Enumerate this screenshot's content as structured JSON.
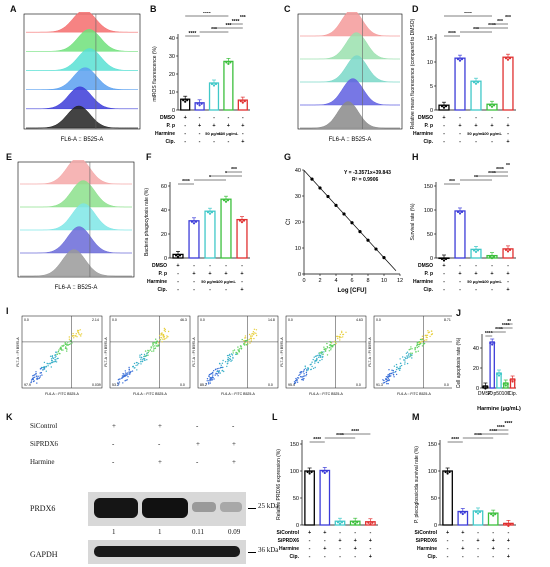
{
  "labels": {
    "A": "A",
    "B": "B",
    "C": "C",
    "D": "D",
    "E": "E",
    "F": "F",
    "G": "G",
    "H": "H",
    "I": "I",
    "J": "J",
    "K": "K",
    "L": "L",
    "M": "M"
  },
  "histograms": {
    "A": {
      "xlabel": "FL6-A :: B525-A",
      "colors": [
        "#f46d6d",
        "#6fe07a",
        "#58e0d4",
        "#5aa0f0",
        "#3c3cd8",
        "#222222"
      ]
    },
    "C": {
      "xlabel": "FL6-A :: B525-A",
      "colors": [
        "#f49a9a",
        "#9ae0ae",
        "#7ad8c8",
        "#5f5fe0",
        "#8a8a8a"
      ]
    },
    "E": {
      "xlabel": "FL6-A :: B525-A",
      "colors": [
        "#f4a8a8",
        "#8ce08c",
        "#7ee6e6",
        "#6a6ad8",
        "#9a9a9a"
      ]
    }
  },
  "treatment_table": {
    "rows": [
      {
        "label": "DMSO",
        "values": [
          "+",
          "-",
          "-",
          "-",
          "-"
        ]
      },
      {
        "label": "P. p",
        "values": [
          "-",
          "+",
          "+",
          "+",
          "+"
        ]
      },
      {
        "label": "Harmine",
        "values": [
          "-",
          "-",
          "50 μg/mL",
          "100 μg/mL",
          "-"
        ]
      },
      {
        "label": "Cip.",
        "values": [
          "-",
          "-",
          "-",
          "-",
          "+"
        ]
      }
    ]
  },
  "charts": {
    "B": {
      "type": "bar",
      "ylabel": "mtROS fluorescence (%)",
      "ylim": [
        0,
        40
      ],
      "ticks": [
        0,
        10,
        20,
        30,
        40
      ],
      "values": [
        6,
        4,
        15,
        27,
        5.5
      ],
      "colors": [
        "#000000",
        "#3c3cd8",
        "#40c8c8",
        "#3cbf3c",
        "#e03030"
      ],
      "sig": [
        "****",
        "***",
        "***",
        "****",
        "***",
        "****"
      ]
    },
    "D": {
      "type": "bar",
      "ylabel": "Relative mean fluorescence (compared to DMSO)",
      "ylim": [
        0,
        15
      ],
      "ticks": [
        0,
        5,
        10,
        15
      ],
      "values": [
        1,
        10.8,
        6,
        1.2,
        11
      ],
      "colors": [
        "#000000",
        "#3c3cd8",
        "#40c8c8",
        "#3cbf3c",
        "#e03030"
      ],
      "sig": [
        "****",
        "***",
        "****",
        "***",
        "***",
        "****"
      ]
    },
    "F": {
      "type": "bar",
      "ylabel": "Bacteria phagocytosis rate (%)",
      "ylim": [
        0,
        60
      ],
      "ticks": [
        0,
        20,
        40,
        60
      ],
      "values": [
        3,
        31,
        39,
        49,
        32
      ],
      "colors": [
        "#000000",
        "#3c3cd8",
        "#40c8c8",
        "#3cbf3c",
        "#e03030"
      ],
      "sig": [
        "****",
        "*",
        "*",
        "***"
      ]
    },
    "G": {
      "type": "line",
      "ylabel": "Ct",
      "xlabel": "Log [CFU]",
      "xlim": [
        0,
        12
      ],
      "ylim": [
        0,
        40
      ],
      "xticks": [
        0,
        2,
        4,
        6,
        8,
        10,
        12
      ],
      "yticks": [
        0,
        10,
        20,
        30,
        40
      ],
      "x": [
        1,
        2,
        3,
        4,
        5,
        6,
        7,
        8,
        9,
        10
      ],
      "y": [
        36.5,
        33.1,
        29.8,
        26.4,
        23.1,
        19.7,
        16.3,
        13,
        9.6,
        6.3
      ],
      "equation": "Y = -3.3571x+39.843",
      "r2": "R² = 0.9906"
    },
    "H": {
      "type": "bar",
      "ylabel": "Survival rate (%)",
      "ylim": [
        0,
        150
      ],
      "ticks": [
        0,
        50,
        100,
        150
      ],
      "values": [
        0,
        98,
        18,
        5,
        19
      ],
      "colors": [
        "#000000",
        "#3c3cd8",
        "#40c8c8",
        "#3cbf3c",
        "#e03030"
      ],
      "sig": [
        "***",
        "**",
        "****",
        "****",
        "**"
      ]
    },
    "J": {
      "type": "bar",
      "ylabel": "Cell apoptosis rate (%)",
      "xlabel": "Harmine (μg/mL)",
      "ylim": [
        0,
        50
      ],
      "ticks": [
        0,
        20,
        40
      ],
      "categories": [
        "DMSO",
        "P. p",
        "50",
        "100",
        "Cip."
      ],
      "values": [
        2,
        46,
        15,
        5,
        9
      ],
      "colors": [
        "#000000",
        "#3c3cd8",
        "#40c8c8",
        "#3cbf3c",
        "#e03030"
      ],
      "sig": [
        "****",
        "****",
        "****",
        "**"
      ]
    },
    "L": {
      "type": "bar",
      "ylabel": "Relative PRDX6 expression (%)",
      "ylim": [
        0,
        150
      ],
      "ticks": [
        0,
        50,
        100,
        150
      ],
      "values": [
        100,
        101,
        7,
        7,
        6
      ],
      "colors": [
        "#000000",
        "#3c3cd8",
        "#40c8c8",
        "#3cbf3c",
        "#e03030"
      ],
      "sig": [
        "****",
        "****",
        "****"
      ]
    },
    "M": {
      "type": "bar",
      "ylabel": "P. plecoglossicida survival rate (%)",
      "ylim": [
        0,
        150
      ],
      "ticks": [
        0,
        50,
        100,
        150
      ],
      "values": [
        100,
        25,
        26,
        22,
        3
      ],
      "colors": [
        "#000000",
        "#3c3cd8",
        "#40c8c8",
        "#3cbf3c",
        "#e03030"
      ],
      "sig": [
        "****",
        "****",
        "****",
        "****",
        "****"
      ]
    }
  },
  "si_table": {
    "rows": [
      {
        "label": "SiControl",
        "values": [
          "+",
          "+",
          "-",
          "-",
          "-"
        ]
      },
      {
        "label": "SiPRDX6",
        "values": [
          "-",
          "-",
          "+",
          "+",
          "+"
        ]
      },
      {
        "label": "Harmine",
        "values": [
          "-",
          "+",
          "-",
          "+",
          "-"
        ]
      },
      {
        "label": "Cip.",
        "values": [
          "-",
          "-",
          "-",
          "-",
          "+"
        ]
      }
    ]
  },
  "flow": {
    "axis_x": "FL6-A :: FITC B525-A",
    "axis_y": "FL7-A :: PI B595-A",
    "panels": [
      {
        "q1": "0.0",
        "q2": "2.14",
        "q3": "97.9",
        "q4": "0.039"
      },
      {
        "q1": "0.0",
        "q2": "46.3",
        "q3": "53.7",
        "q4": "0.0"
      },
      {
        "q1": "0.0",
        "q2": "14.8",
        "q3": "85.2",
        "q4": "0.0"
      },
      {
        "q1": "0.0",
        "q2": "4.63",
        "q3": "95.4",
        "q4": "0.0"
      },
      {
        "q1": "0.0",
        "q2": "8.71",
        "q3": "91.3",
        "q4": "0.0"
      }
    ]
  },
  "western": {
    "conditions": [
      {
        "label": "SiControl",
        "values": [
          "+",
          "+",
          "-",
          "-"
        ]
      },
      {
        "label": "SiPRDX6",
        "values": [
          "-",
          "-",
          "+",
          "+"
        ]
      },
      {
        "label": "Harmine",
        "values": [
          "-",
          "+",
          "-",
          "+"
        ]
      }
    ],
    "protein1": "PRDX6",
    "protein2": "GAPDH",
    "kda1": "25 kDa",
    "kda2": "36 kDa",
    "ratios": [
      "1",
      "1",
      "0.11",
      "0.09"
    ]
  }
}
